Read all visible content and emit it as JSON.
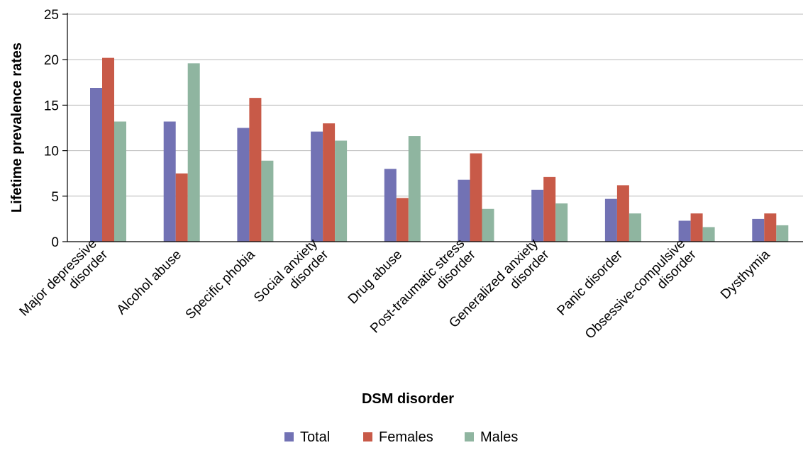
{
  "chart_data": {
    "type": "bar",
    "xlabel": "DSM disorder",
    "ylabel": "Lifetime prevalence rates",
    "ylim": [
      0,
      25
    ],
    "yticks": [
      0,
      5,
      10,
      15,
      20,
      25
    ],
    "grid": true,
    "legend_position": "bottom",
    "categories": [
      [
        "Major depressive",
        "disorder"
      ],
      [
        "Alcohol abuse"
      ],
      [
        "Specific phobia"
      ],
      [
        "Social anxiety",
        "disorder"
      ],
      [
        "Drug abuse"
      ],
      [
        "Post-traumatic stress",
        "disorder"
      ],
      [
        "Generalized anxiety",
        "disorder"
      ],
      [
        "Panic disorder"
      ],
      [
        "Obsessive-compulsive",
        "disorder"
      ],
      [
        "Dysthymia"
      ]
    ],
    "series": [
      {
        "name": "Total",
        "color": "#7272b4",
        "values": [
          16.9,
          13.2,
          12.5,
          12.1,
          8.0,
          6.8,
          5.7,
          4.7,
          2.3,
          2.5
        ]
      },
      {
        "name": "Females",
        "color": "#c85a48",
        "values": [
          20.2,
          7.5,
          15.8,
          13.0,
          4.8,
          9.7,
          7.1,
          6.2,
          3.1,
          3.1
        ]
      },
      {
        "name": "Males",
        "color": "#8fb5a0",
        "values": [
          13.2,
          19.6,
          8.9,
          11.1,
          11.6,
          3.6,
          4.2,
          3.1,
          1.6,
          1.8
        ]
      }
    ]
  }
}
